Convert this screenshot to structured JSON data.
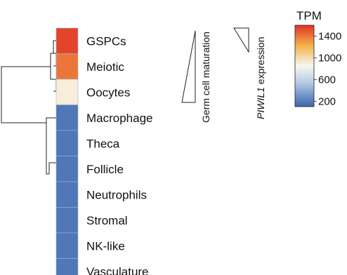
{
  "chart_data": {
    "type": "heatmap",
    "rows": [
      "GSPCs",
      "Meiotic",
      "Oocytes",
      "Macrophage",
      "Theca",
      "Follicle",
      "Neutrophils",
      "Stromal",
      "NK-like",
      "Vasculature"
    ],
    "values": [
      1550,
      1400,
      900,
      180,
      180,
      180,
      180,
      180,
      180,
      180
    ],
    "annotations": [
      {
        "text": "Germ cell maturation"
      },
      {
        "text_italic": "PIWIL1",
        "text": " expression"
      }
    ],
    "colorbar": {
      "title": "TPM",
      "ticks": [
        1400,
        1000,
        600,
        200
      ],
      "range": [
        100,
        1600
      ],
      "colors": [
        "#3a64ad",
        "#b5cde4",
        "#f7f7f0",
        "#f3b24a",
        "#e03426"
      ]
    }
  }
}
